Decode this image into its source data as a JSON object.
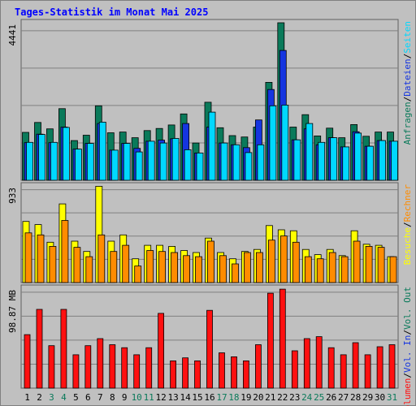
{
  "title": "Tages-Statistik im Monat Mai 2025",
  "colors": {
    "background": "#c0c0c0",
    "grid": "#808080",
    "title": "#0000ff",
    "anfragen": "#0a7a5a",
    "dateien": "#1535e0",
    "seiten": "#00d8ff",
    "besuche": "#ffff00",
    "rechner": "#ff8c00",
    "volumen": "#ff1010",
    "weekend_day": "#0a7a5a",
    "weekday_day": "#000000"
  },
  "chart_data": [
    {
      "type": "bar",
      "panel": "top",
      "ymax_label": "4441",
      "ylim": [
        0,
        4441
      ],
      "categories": [
        "1",
        "2",
        "3",
        "4",
        "5",
        "6",
        "7",
        "8",
        "9",
        "10",
        "11",
        "12",
        "13",
        "14",
        "15",
        "16",
        "17",
        "18",
        "19",
        "20",
        "21",
        "22",
        "23",
        "24",
        "25",
        "26",
        "27",
        "28",
        "29",
        "30",
        "31"
      ],
      "right_labels": [
        {
          "text": "Anfragen",
          "key": "anfragen"
        },
        {
          "text": "/",
          "key": "sep"
        },
        {
          "text": "Dateien",
          "key": "dateien"
        },
        {
          "text": "/",
          "key": "sep"
        },
        {
          "text": "Seiten",
          "key": "seiten"
        }
      ],
      "series": [
        {
          "name": "Anfragen",
          "values": [
            1350,
            1630,
            1450,
            2020,
            1120,
            1270,
            2100,
            1340,
            1360,
            1200,
            1400,
            1460,
            1560,
            1870,
            1050,
            2200,
            1480,
            1260,
            1220,
            1500,
            2760,
            4440,
            1500,
            1850,
            1250,
            1470,
            1200,
            1570,
            1240,
            1360,
            1360
          ]
        },
        {
          "name": "Dateien",
          "values": [
            1060,
            1300,
            1060,
            1500,
            880,
            1040,
            1600,
            850,
            1040,
            900,
            1100,
            1130,
            1170,
            1600,
            770,
            1500,
            1050,
            1000,
            920,
            1700,
            2560,
            3660,
            1140,
            1450,
            1000,
            1200,
            940,
            1370,
            960,
            1120,
            1100
          ]
        },
        {
          "name": "Seiten",
          "values": [
            1070,
            1290,
            1070,
            1490,
            880,
            1040,
            1640,
            850,
            1040,
            800,
            1100,
            1050,
            1180,
            860,
            770,
            1920,
            1050,
            1000,
            780,
            1000,
            2100,
            2120,
            1140,
            1600,
            1070,
            1200,
            940,
            1330,
            960,
            1120,
            1100
          ]
        }
      ]
    },
    {
      "type": "bar",
      "panel": "middle",
      "ymax_label": "933",
      "ylim": [
        0,
        933
      ],
      "categories": [
        "1",
        "2",
        "3",
        "4",
        "5",
        "6",
        "7",
        "8",
        "9",
        "10",
        "11",
        "12",
        "13",
        "14",
        "15",
        "16",
        "17",
        "18",
        "19",
        "20",
        "21",
        "22",
        "23",
        "24",
        "25",
        "26",
        "27",
        "28",
        "29",
        "30",
        "31"
      ],
      "right_labels": [
        {
          "text": "Besuche",
          "key": "besuche"
        },
        {
          "text": "/",
          "key": "sep"
        },
        {
          "text": "Rechner",
          "key": "rechner"
        }
      ],
      "series": [
        {
          "name": "Besuche",
          "values": [
            590,
            560,
            390,
            760,
            400,
            300,
            930,
            400,
            460,
            230,
            360,
            360,
            350,
            310,
            290,
            430,
            290,
            230,
            300,
            320,
            550,
            510,
            500,
            320,
            270,
            320,
            260,
            500,
            370,
            360,
            250
          ]
        },
        {
          "name": "Rechner",
          "values": [
            480,
            460,
            350,
            600,
            340,
            250,
            460,
            300,
            360,
            160,
            310,
            300,
            290,
            260,
            250,
            400,
            260,
            180,
            290,
            290,
            410,
            450,
            390,
            250,
            230,
            290,
            250,
            400,
            350,
            340,
            250
          ]
        }
      ]
    },
    {
      "type": "bar",
      "panel": "bottom",
      "ymax_label": "98.87 MB",
      "ylim": [
        0,
        98.87
      ],
      "categories": [
        "1",
        "2",
        "3",
        "4",
        "5",
        "6",
        "7",
        "8",
        "9",
        "10",
        "11",
        "12",
        "13",
        "14",
        "15",
        "16",
        "17",
        "18",
        "19",
        "20",
        "21",
        "22",
        "23",
        "24",
        "25",
        "26",
        "27",
        "28",
        "29",
        "30",
        "31"
      ],
      "right_labels": [
        {
          "text": "Volumen",
          "key": "volumen"
        },
        {
          "text": "/",
          "key": "sep"
        },
        {
          "text": "Vol. In",
          "key": "dateien"
        },
        {
          "text": "/",
          "key": "sep"
        },
        {
          "text": "Vol. Out",
          "key": "anfragen"
        }
      ],
      "series": [
        {
          "name": "Volumen",
          "values": [
            53,
            78,
            42,
            78,
            33,
            42,
            49,
            43,
            40,
            33,
            40,
            74,
            27,
            30,
            27,
            77,
            35,
            31,
            27,
            43,
            94,
            98,
            37,
            49,
            51,
            40,
            33,
            45,
            33,
            41,
            43
          ]
        }
      ]
    }
  ],
  "day_label_colors": [
    "weekday",
    "weekday",
    "weekend",
    "weekend",
    "weekday",
    "weekday",
    "weekday",
    "weekday",
    "weekday",
    "weekend",
    "weekend",
    "weekday",
    "weekday",
    "weekday",
    "weekday",
    "weekday",
    "weekend",
    "weekend",
    "weekday",
    "weekday",
    "weekday",
    "weekday",
    "weekday",
    "weekend",
    "weekend",
    "weekday",
    "weekday",
    "weekday",
    "weekday",
    "weekday",
    "weekend"
  ]
}
